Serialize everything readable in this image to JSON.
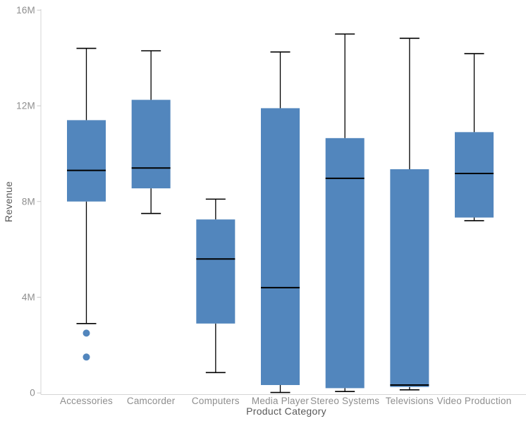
{
  "chart_data": {
    "type": "boxplot",
    "title": "",
    "xlabel": "Product Category",
    "ylabel": "Revenue",
    "value_unit": "millions",
    "ylim": [
      0,
      16
    ],
    "y_ticks": [
      {
        "value": 0,
        "label": "0"
      },
      {
        "value": 4,
        "label": "4M"
      },
      {
        "value": 8,
        "label": "8M"
      },
      {
        "value": 12,
        "label": "12M"
      },
      {
        "value": 16,
        "label": "16M"
      }
    ],
    "grid": false,
    "legend_position": "none",
    "colors": {
      "box_fill": "#5286BD",
      "median_line": "#000000",
      "whisker_line": "#000000",
      "axis_line": "#d6d6d6",
      "tick_mark": "#c9c9c9",
      "tick_label": "#8e8e8e",
      "axis_title": "#595959"
    },
    "series": [
      {
        "category": "Accessories",
        "whisker_low": 2.9,
        "q1": 8.0,
        "median": 9.3,
        "q3": 11.4,
        "whisker_high": 14.4,
        "outliers": [
          2.5,
          1.5
        ]
      },
      {
        "category": "Camcorder",
        "whisker_low": 7.5,
        "q1": 8.55,
        "median": 9.4,
        "q3": 12.25,
        "whisker_high": 14.3,
        "outliers": []
      },
      {
        "category": "Computers",
        "whisker_low": 0.85,
        "q1": 2.9,
        "median": 5.6,
        "q3": 7.25,
        "whisker_high": 8.1,
        "outliers": []
      },
      {
        "category": "Media Player",
        "whisker_low": 0.02,
        "q1": 0.33,
        "median": 4.4,
        "q3": 11.9,
        "whisker_high": 14.25,
        "outliers": []
      },
      {
        "category": "Stereo Systems",
        "whisker_low": 0.06,
        "q1": 0.2,
        "median": 8.97,
        "q3": 10.65,
        "whisker_high": 15.0,
        "outliers": []
      },
      {
        "category": "Televisions",
        "whisker_low": 0.13,
        "q1": 0.25,
        "median": 0.33,
        "q3": 9.35,
        "whisker_high": 14.82,
        "outliers": []
      },
      {
        "category": "Video Production",
        "whisker_low": 7.2,
        "q1": 7.33,
        "median": 9.17,
        "q3": 10.9,
        "whisker_high": 14.18,
        "outliers": []
      }
    ]
  }
}
